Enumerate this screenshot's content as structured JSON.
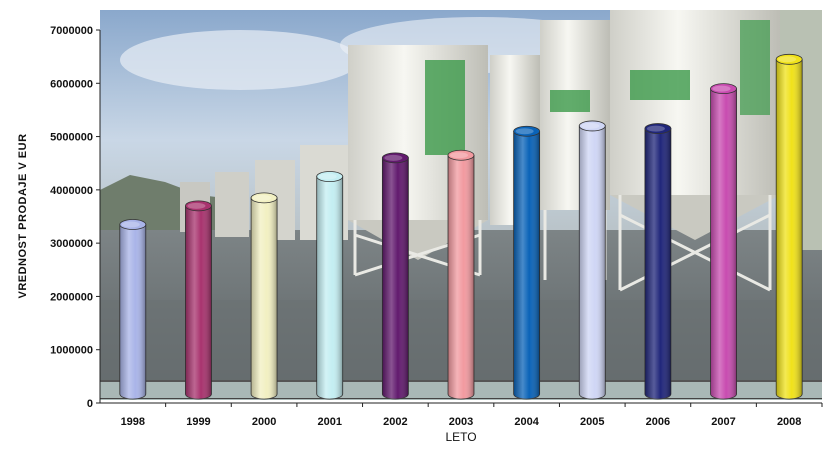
{
  "chart_data": {
    "type": "bar",
    "title": "",
    "xlabel": "LETO",
    "ylabel": "VREDNOST PRODAJE V EUR",
    "ylim": [
      0,
      7000000
    ],
    "y_ticks": [
      "0",
      "1000000",
      "2000000",
      "3000000",
      "4000000",
      "5000000",
      "6000000",
      "7000000"
    ],
    "categories": [
      "1998",
      "1999",
      "2000",
      "2001",
      "2002",
      "2003",
      "2004",
      "2005",
      "2006",
      "2007",
      "2008"
    ],
    "values": [
      3350000,
      3700000,
      3850000,
      4250000,
      4600000,
      4650000,
      5100000,
      5200000,
      5150000,
      5900000,
      6450000
    ],
    "colors": [
      "#a9b4e8",
      "#a8336e",
      "#f2f0c2",
      "#c4eef2",
      "#621a6e",
      "#f29aa0",
      "#0a63b8",
      "#cfd6f5",
      "#20267a",
      "#c84cb0",
      "#f0e21a"
    ],
    "grid": false,
    "legend": "none",
    "background": "photo of cement silos"
  }
}
